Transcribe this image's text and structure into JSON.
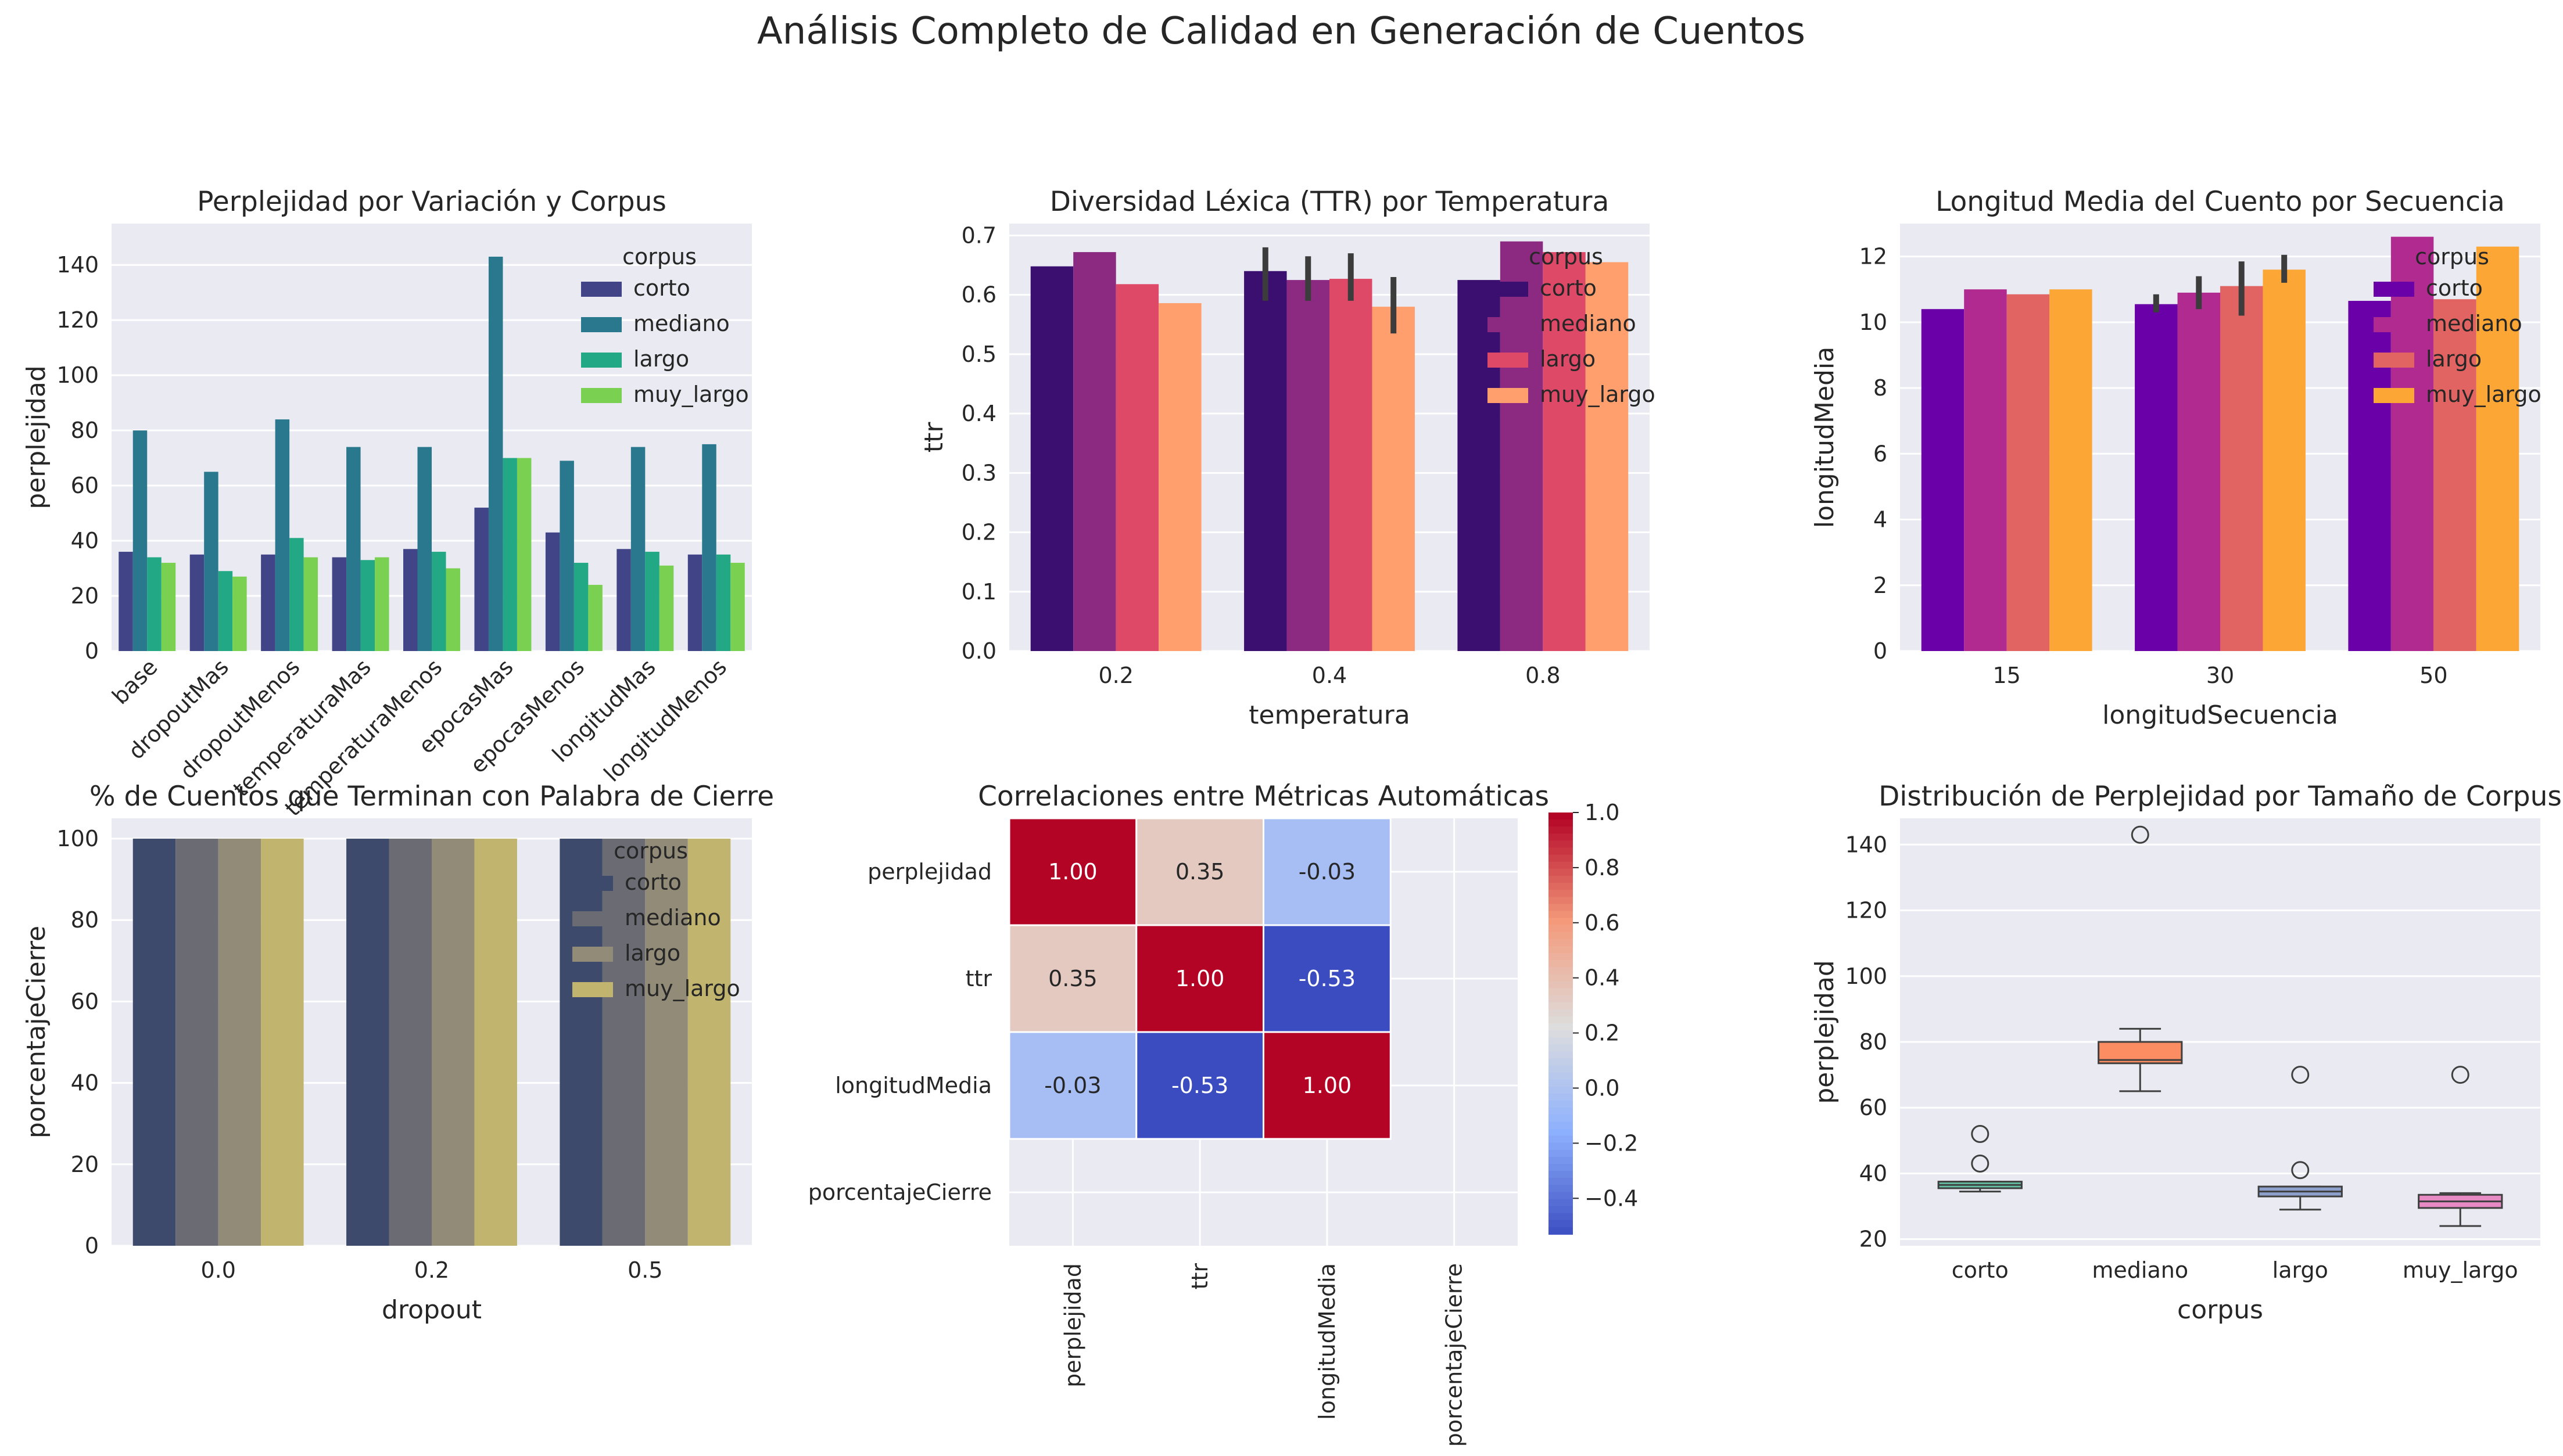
{
  "suptitle": "Análisis Completo de Calidad en Generación de Cuentos",
  "chart_data": [
    {
      "id": "p1",
      "type": "bar",
      "title": "Perplejidad por Variación y Corpus",
      "xlabel": "",
      "ylabel": "perplejidad",
      "categories": [
        "base",
        "dropoutMas",
        "dropoutMenos",
        "temperaturaMas",
        "temperaturaMenos",
        "epocasMas",
        "epocasMenos",
        "longitudMas",
        "longitudMenos"
      ],
      "ylim": [
        0,
        155
      ],
      "yticks": [
        0,
        20,
        40,
        60,
        80,
        100,
        120,
        140
      ],
      "legend_title": "corpus",
      "legend_position": "top-right",
      "series": [
        {
          "name": "corto",
          "color": "#414487",
          "values": [
            36,
            35,
            35,
            34,
            37,
            52,
            43,
            37,
            35
          ]
        },
        {
          "name": "mediano",
          "color": "#2a788e",
          "values": [
            80,
            65,
            84,
            74,
            74,
            143,
            69,
            74,
            75
          ]
        },
        {
          "name": "largo",
          "color": "#22a884",
          "values": [
            34,
            29,
            41,
            33,
            36,
            70,
            32,
            36,
            35
          ]
        },
        {
          "name": "muy_largo",
          "color": "#7ad151",
          "values": [
            32,
            27,
            34,
            34,
            30,
            70,
            24,
            31,
            32
          ]
        }
      ]
    },
    {
      "id": "p2",
      "type": "bar",
      "title": "Diversidad Léxica (TTR) por Temperatura",
      "xlabel": "temperatura",
      "ylabel": "ttr",
      "categories": [
        "0.2",
        "0.4",
        "0.8"
      ],
      "ylim": [
        0,
        0.72
      ],
      "yticks": [
        0.0,
        0.1,
        0.2,
        0.3,
        0.4,
        0.5,
        0.6,
        0.7
      ],
      "legend_title": "corpus",
      "legend_position": "top-right",
      "series": [
        {
          "name": "corto",
          "color": "#3b0f70",
          "values": [
            0.648,
            0.64,
            0.625
          ],
          "err": [
            null,
            [
              0.59,
              0.68
            ],
            null
          ]
        },
        {
          "name": "mediano",
          "color": "#8c2981",
          "values": [
            0.672,
            0.625,
            0.69
          ],
          "err": [
            null,
            [
              0.59,
              0.665
            ],
            null
          ]
        },
        {
          "name": "largo",
          "color": "#de4968",
          "values": [
            0.618,
            0.627,
            0.672
          ],
          "err": [
            null,
            [
              0.59,
              0.67
            ],
            null
          ]
        },
        {
          "name": "muy_largo",
          "color": "#fe9f6d",
          "values": [
            0.586,
            0.58,
            0.655
          ],
          "err": [
            null,
            [
              0.535,
              0.63
            ],
            null
          ]
        }
      ]
    },
    {
      "id": "p3",
      "type": "bar",
      "title": "Longitud Media del Cuento por Secuencia",
      "xlabel": "longitudSecuencia",
      "ylabel": "longitudMedia",
      "categories": [
        "15",
        "30",
        "50"
      ],
      "ylim": [
        0,
        13
      ],
      "yticks": [
        0,
        2,
        4,
        6,
        8,
        10,
        12
      ],
      "legend_title": "corpus",
      "legend_position": "top-right",
      "series": [
        {
          "name": "corto",
          "color": "#6a00a8",
          "values": [
            10.4,
            10.55,
            10.65
          ],
          "err": [
            null,
            [
              10.3,
              10.85
            ],
            null
          ]
        },
        {
          "name": "mediano",
          "color": "#b12a90",
          "values": [
            11.0,
            10.9,
            12.6
          ],
          "err": [
            null,
            [
              10.4,
              11.4
            ],
            null
          ]
        },
        {
          "name": "largo",
          "color": "#e16462",
          "values": [
            10.85,
            11.1,
            10.7
          ],
          "err": [
            null,
            [
              10.2,
              11.85
            ],
            null
          ]
        },
        {
          "name": "muy_largo",
          "color": "#fca636",
          "values": [
            11.0,
            11.6,
            12.3
          ],
          "err": [
            null,
            [
              11.2,
              12.05
            ],
            null
          ]
        }
      ]
    },
    {
      "id": "p4",
      "type": "bar",
      "title": "% de Cuentos que Terminan con Palabra de Cierre",
      "xlabel": "dropout",
      "ylabel": "porcentajeCierre",
      "categories": [
        "0.0",
        "0.2",
        "0.5"
      ],
      "ylim": [
        0,
        105
      ],
      "yticks": [
        0,
        20,
        40,
        60,
        80,
        100
      ],
      "legend_title": "corpus",
      "legend_position": "top-right",
      "series": [
        {
          "name": "corto",
          "color": "#3d4a6b",
          "values": [
            100,
            100,
            100
          ]
        },
        {
          "name": "mediano",
          "color": "#6b6b73",
          "values": [
            100,
            100,
            100
          ]
        },
        {
          "name": "largo",
          "color": "#928b78",
          "values": [
            100,
            100,
            100
          ]
        },
        {
          "name": "muy_largo",
          "color": "#c0b46e",
          "values": [
            100,
            100,
            100
          ]
        }
      ]
    },
    {
      "id": "p5",
      "type": "heatmap",
      "title": "Correlaciones entre Métricas Automáticas",
      "labels": [
        "perplejidad",
        "ttr",
        "longitudMedia",
        "porcentajeCierre"
      ],
      "matrix": [
        [
          1.0,
          0.35,
          -0.03,
          null
        ],
        [
          0.35,
          1.0,
          -0.53,
          null
        ],
        [
          -0.03,
          -0.53,
          1.0,
          null
        ],
        [
          null,
          null,
          null,
          null
        ]
      ],
      "vmin": -0.53,
      "vmax": 1.0,
      "colorbar_ticks": [
        "1.0",
        "0.8",
        "0.6",
        "0.4",
        "0.2",
        "0.0",
        "−0.2",
        "−0.4"
      ],
      "colormap": "coolwarm"
    },
    {
      "id": "p6",
      "type": "box",
      "title": "Distribución de Perplejidad por Tamaño de Corpus",
      "xlabel": "corpus",
      "ylabel": "perplejidad",
      "categories": [
        "corto",
        "mediano",
        "largo",
        "muy_largo"
      ],
      "ylim": [
        18,
        148
      ],
      "yticks": [
        20,
        40,
        60,
        80,
        100,
        120,
        140
      ],
      "boxes": [
        {
          "color": "#66c2a5",
          "q1": 35.5,
          "median": 36.5,
          "q3": 37.5,
          "whislo": 34.5,
          "whishi": 37.5,
          "fliers": [
            43,
            52
          ]
        },
        {
          "color": "#fc8d62",
          "q1": 73.5,
          "median": 74.5,
          "q3": 80,
          "whislo": 65,
          "whishi": 84,
          "fliers": [
            143
          ]
        },
        {
          "color": "#8da0cb",
          "q1": 33,
          "median": 34.5,
          "q3": 36,
          "whislo": 29,
          "whishi": 36,
          "fliers": [
            41,
            70
          ]
        },
        {
          "color": "#e78ac3",
          "q1": 29.5,
          "median": 31.5,
          "q3": 33.5,
          "whislo": 24,
          "whishi": 34,
          "fliers": [
            70
          ]
        }
      ]
    }
  ]
}
